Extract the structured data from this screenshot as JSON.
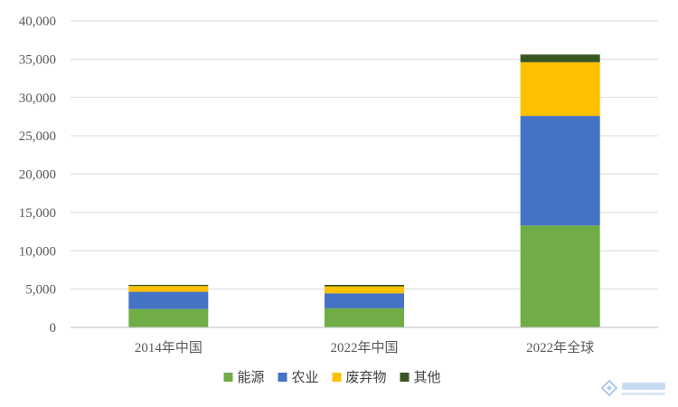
{
  "chart_data": {
    "type": "bar",
    "stacked": true,
    "categories": [
      "2014年中国",
      "2022年中国",
      "2022年全球"
    ],
    "series": [
      {
        "name": "能源",
        "color": "#70ad47",
        "values": [
          2400,
          2500,
          13300
        ]
      },
      {
        "name": "农业",
        "color": "#4472c4",
        "values": [
          2250,
          1950,
          14300
        ]
      },
      {
        "name": "废弃物",
        "color": "#ffc000",
        "values": [
          750,
          900,
          7000
        ]
      },
      {
        "name": "其他",
        "color": "#375623",
        "values": [
          150,
          200,
          1000
        ]
      }
    ],
    "y_ticks": [
      "0",
      "5,000",
      "10,000",
      "15,000",
      "20,000",
      "25,000",
      "30,000",
      "35,000",
      "40,000"
    ],
    "ylim": [
      0,
      40000
    ],
    "grid": true,
    "legend_position": "bottom"
  },
  "watermark": {
    "icon": "logo-icon"
  }
}
